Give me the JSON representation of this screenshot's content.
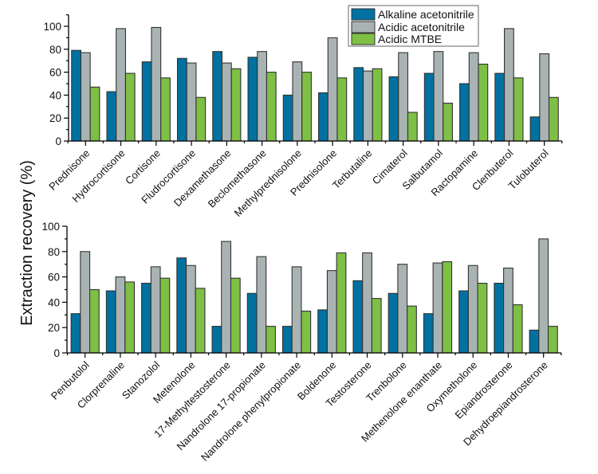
{
  "chart_data": {
    "type": "bar",
    "ylabel": "Extraction recovery (%)",
    "legend": {
      "placement": "top-right",
      "entries": [
        {
          "name": "Alkaline acetonitrile",
          "color": "#0071a0"
        },
        {
          "name": "Acidic acetonitrile",
          "color": "#aab3b3"
        },
        {
          "name": "Acidic MTBE",
          "color": "#7ebf45"
        }
      ]
    },
    "panels": [
      {
        "id": "top",
        "ylim": [
          0,
          110
        ],
        "yticks": [
          0,
          20,
          40,
          60,
          80,
          100
        ],
        "categories": [
          "Prednisone",
          "Hydrocortisone",
          "Cortisone",
          "Fludrocortisone",
          "Dexamethasone",
          "Beclomethasone",
          "Methylprednisolone",
          "Prednisolone",
          "Terbutaline",
          "Cimaterol",
          "Salbutamol",
          "Ractopamine",
          "Clenbuterol",
          "Tulobuterol"
        ],
        "series": [
          {
            "name": "Alkaline acetonitrile",
            "values": [
              79,
              43,
              69,
              72,
              78,
              73,
              40,
              42,
              64,
              56,
              59,
              50,
              59,
              21
            ]
          },
          {
            "name": "Acidic acetonitrile",
            "values": [
              77,
              98,
              99,
              68,
              68,
              78,
              69,
              90,
              61,
              77,
              78,
              77,
              98,
              76
            ]
          },
          {
            "name": "Acidic MTBE",
            "values": [
              47,
              59,
              55,
              38,
              63,
              60,
              60,
              55,
              63,
              25,
              33,
              67,
              55,
              38
            ]
          }
        ]
      },
      {
        "id": "bottom",
        "ylim": [
          0,
          100
        ],
        "yticks": [
          0,
          20,
          40,
          60,
          80,
          100
        ],
        "categories": [
          "Penbutolol",
          "Clorprenaline",
          "Stanozolol",
          "Metenolone",
          "17-Methyltestosterone",
          "Nandrolone 17-propionate",
          "Nandrolone phenylpropionate",
          "Boldenone",
          "Testosterone",
          "Trenbolone",
          "Methenolone enanthate",
          "Oxymetholone",
          "Epiandrosterone",
          "Dehydroepiandrosterone"
        ],
        "series": [
          {
            "name": "Alkaline acetonitrile",
            "values": [
              31,
              49,
              55,
              75,
              21,
              47,
              21,
              34,
              57,
              47,
              31,
              49,
              55,
              18
            ]
          },
          {
            "name": "Acidic acetonitrile",
            "values": [
              80,
              60,
              68,
              69,
              88,
              76,
              68,
              65,
              79,
              70,
              71,
              69,
              67,
              90
            ]
          },
          {
            "name": "Acidic MTBE",
            "values": [
              50,
              56,
              59,
              51,
              59,
              21,
              33,
              79,
              43,
              37,
              72,
              55,
              38,
              21
            ]
          }
        ]
      }
    ]
  }
}
